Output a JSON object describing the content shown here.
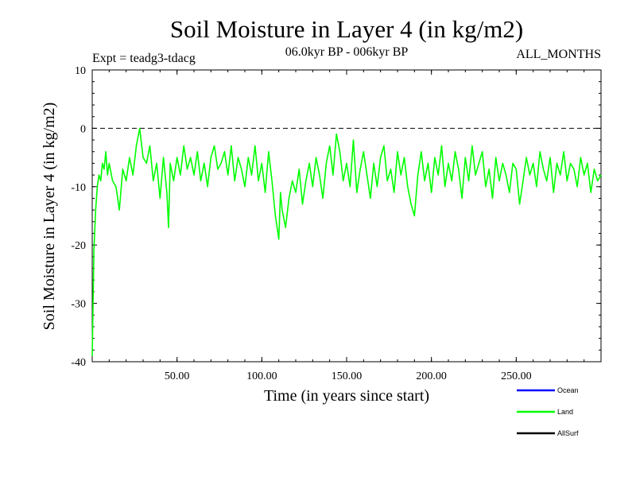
{
  "chart_data": {
    "type": "line",
    "title": "Soil Moisture in Layer 4 (in kg/m2)",
    "subtitle": "06.0kyr BP - 006kyr BP",
    "experiment": "Expt = teadg3-tdacg",
    "months": "ALL_MONTHS",
    "xlabel": "Time (in years since start)",
    "ylabel": "Soil Moisture in Layer 4 (in kg/m2)",
    "xlim": [
      0,
      300
    ],
    "ylim": [
      -40,
      10
    ],
    "xticks": [
      50,
      100,
      150,
      200,
      250
    ],
    "xtick_labels": [
      "50.00",
      "100.00",
      "150.00",
      "200.00",
      "250.00"
    ],
    "yticks": [
      -40,
      -30,
      -20,
      -10,
      0,
      10
    ],
    "ytick_labels": [
      "-40",
      "-30",
      "-20",
      "-10",
      "0",
      "10"
    ],
    "reference_line": {
      "y": 0,
      "style": "dashed"
    },
    "legend": [
      {
        "name": "Ocean",
        "color": "#0000ff"
      },
      {
        "name": "Land",
        "color": "#00ff00"
      },
      {
        "name": "AllSurf",
        "color": "#000000"
      }
    ],
    "series": [
      {
        "name": "Land",
        "color": "#00ff00",
        "x": [
          0,
          1,
          2,
          3,
          4,
          5,
          6,
          7,
          8,
          9,
          10,
          12,
          14,
          16,
          18,
          20,
          22,
          24,
          26,
          28,
          30,
          32,
          34,
          36,
          38,
          40,
          42,
          44,
          45,
          46,
          48,
          50,
          52,
          54,
          56,
          58,
          60,
          62,
          64,
          66,
          68,
          70,
          72,
          74,
          76,
          78,
          80,
          82,
          84,
          86,
          88,
          90,
          92,
          94,
          96,
          98,
          100,
          102,
          104,
          106,
          108,
          110,
          111,
          112,
          114,
          116,
          118,
          120,
          122,
          124,
          126,
          128,
          130,
          132,
          134,
          136,
          138,
          140,
          142,
          144,
          146,
          148,
          150,
          152,
          154,
          156,
          158,
          160,
          162,
          164,
          166,
          168,
          170,
          172,
          174,
          176,
          178,
          180,
          182,
          184,
          186,
          188,
          190,
          192,
          194,
          196,
          198,
          200,
          202,
          204,
          206,
          208,
          210,
          212,
          214,
          216,
          218,
          220,
          222,
          224,
          226,
          228,
          230,
          232,
          234,
          236,
          238,
          240,
          242,
          244,
          246,
          248,
          250,
          252,
          254,
          256,
          258,
          260,
          262,
          264,
          266,
          268,
          270,
          272,
          274,
          276,
          278,
          280,
          282,
          284,
          286,
          288,
          290,
          292,
          294,
          296,
          298,
          300
        ],
        "values": [
          -39,
          -21,
          -14,
          -10,
          -8,
          -9,
          -6,
          -7,
          -4,
          -8,
          -6,
          -9,
          -10,
          -14,
          -7,
          -9,
          -5,
          -8,
          -3,
          0,
          -5,
          -6,
          -3,
          -9,
          -6,
          -12,
          -5,
          -11,
          -17,
          -6,
          -9,
          -5,
          -8,
          -3,
          -7,
          -5,
          -8,
          -4,
          -9,
          -6,
          -10,
          -5,
          -3,
          -7,
          -6,
          -4,
          -8,
          -3,
          -9,
          -5,
          -7,
          -10,
          -5,
          -8,
          -3,
          -9,
          -6,
          -11,
          -4,
          -9,
          -15,
          -19,
          -11,
          -14,
          -17,
          -12,
          -9,
          -11,
          -7,
          -13,
          -9,
          -6,
          -10,
          -5,
          -8,
          -12,
          -6,
          -3,
          -8,
          -1,
          -4,
          -9,
          -6,
          -10,
          -2,
          -11,
          -7,
          -4,
          -8,
          -12,
          -6,
          -10,
          -5,
          -3,
          -9,
          -7,
          -11,
          -4,
          -8,
          -5,
          -10,
          -13,
          -15,
          -8,
          -4,
          -9,
          -6,
          -11,
          -5,
          -8,
          -3,
          -10,
          -6,
          -9,
          -4,
          -7,
          -12,
          -5,
          -9,
          -3,
          -8,
          -6,
          -4,
          -10,
          -7,
          -12,
          -5,
          -9,
          -6,
          -8,
          -11,
          -6,
          -7,
          -13,
          -9,
          -5,
          -8,
          -6,
          -10,
          -4,
          -7,
          -9,
          -5,
          -11,
          -6,
          -8,
          -4,
          -9,
          -6,
          -7,
          -10,
          -5,
          -8,
          -6,
          -11,
          -7,
          -9,
          -8
        ]
      }
    ]
  }
}
